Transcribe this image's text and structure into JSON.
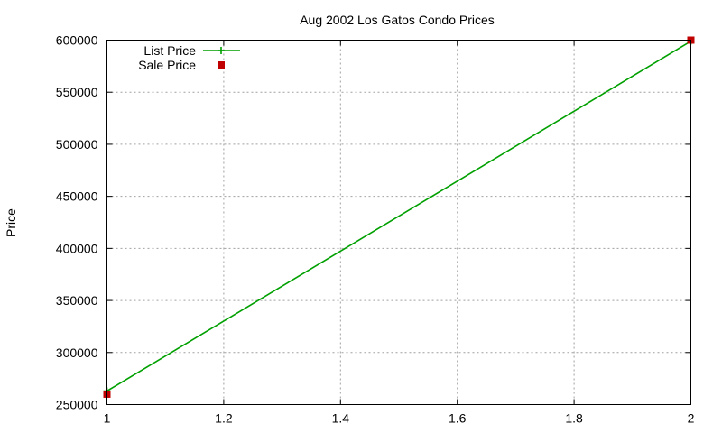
{
  "chart_data": {
    "type": "line",
    "title": "Aug 2002 Los Gatos Condo Prices",
    "xlabel": "",
    "ylabel": "Price",
    "xlim": [
      1,
      2
    ],
    "ylim": [
      250000,
      600000
    ],
    "xticks": [
      1,
      1.2,
      1.4,
      1.6,
      1.8,
      2
    ],
    "xtick_labels": [
      "1",
      "1.2",
      "1.4",
      "1.6",
      "1.8",
      "2"
    ],
    "yticks": [
      250000,
      300000,
      350000,
      400000,
      450000,
      500000,
      550000,
      600000
    ],
    "ytick_labels": [
      "250000",
      "300000",
      "350000",
      "400000",
      "450000",
      "500000",
      "550000",
      "600000"
    ],
    "grid": true,
    "legend_position": "top-left",
    "series": [
      {
        "name": "List Price",
        "style": "linespoints",
        "color": "#00a000",
        "x": [
          1,
          2
        ],
        "y": [
          263000,
          599000
        ]
      },
      {
        "name": "Sale Price",
        "style": "points",
        "color": "#c00000",
        "x": [
          1,
          2
        ],
        "y": [
          260000,
          600000
        ]
      }
    ]
  }
}
